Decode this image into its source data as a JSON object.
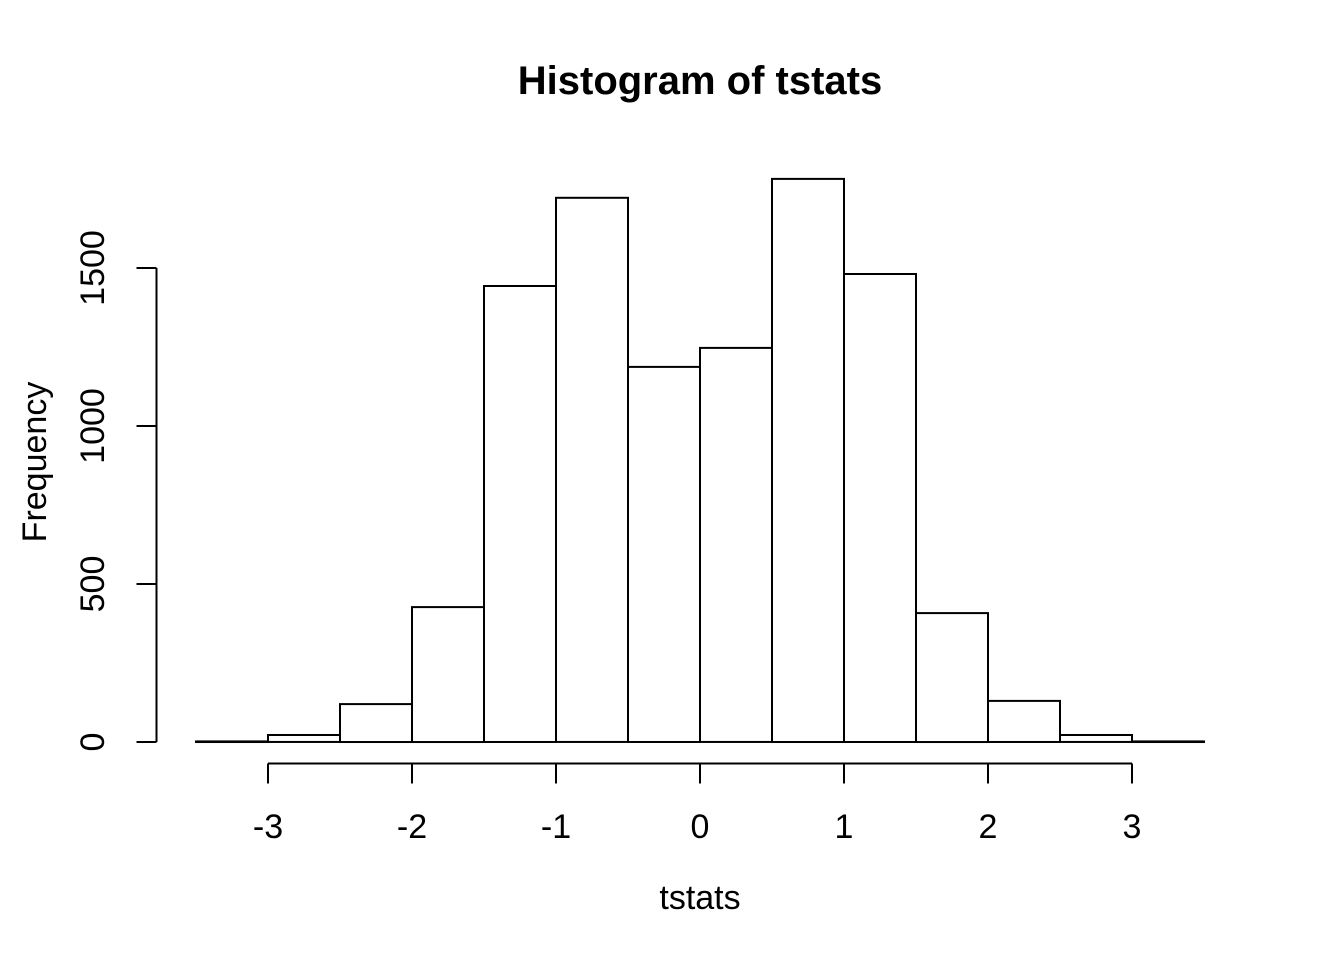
{
  "title": "Histogram of tstats",
  "x_axis_label": "tstats",
  "y_axis_label": "Frequency",
  "chart_data": {
    "type": "bar",
    "subtype": "histogram",
    "title": "Histogram of tstats",
    "xlabel": "tstats",
    "ylabel": "Frequency",
    "bin_width": 0.5,
    "bin_edges": [
      -3.5,
      -3,
      -2.5,
      -2,
      -1.5,
      -1,
      -0.5,
      0,
      0.5,
      1,
      1.5,
      2,
      2.5,
      3,
      3.5
    ],
    "counts": [
      2,
      22,
      120,
      427,
      1443,
      1722,
      1187,
      1247,
      1782,
      1481,
      408,
      130,
      22,
      2
    ],
    "x_ticks": [
      -3,
      -2,
      -1,
      0,
      1,
      2,
      3
    ],
    "x_tick_labels": [
      "-3",
      "-2",
      "-1",
      "0",
      "1",
      "2",
      "3"
    ],
    "y_ticks": [
      0,
      500,
      1000,
      1500
    ],
    "y_tick_labels": [
      "0",
      "500",
      "1000",
      "1500"
    ],
    "xlim": [
      -3.5,
      3.5
    ],
    "ylim": [
      0,
      1500
    ],
    "grid": false,
    "legend": "none",
    "bar_fill": "#ffffff",
    "bar_stroke": "#000000",
    "axis_color": "#000000",
    "background_color": "#ffffff"
  }
}
